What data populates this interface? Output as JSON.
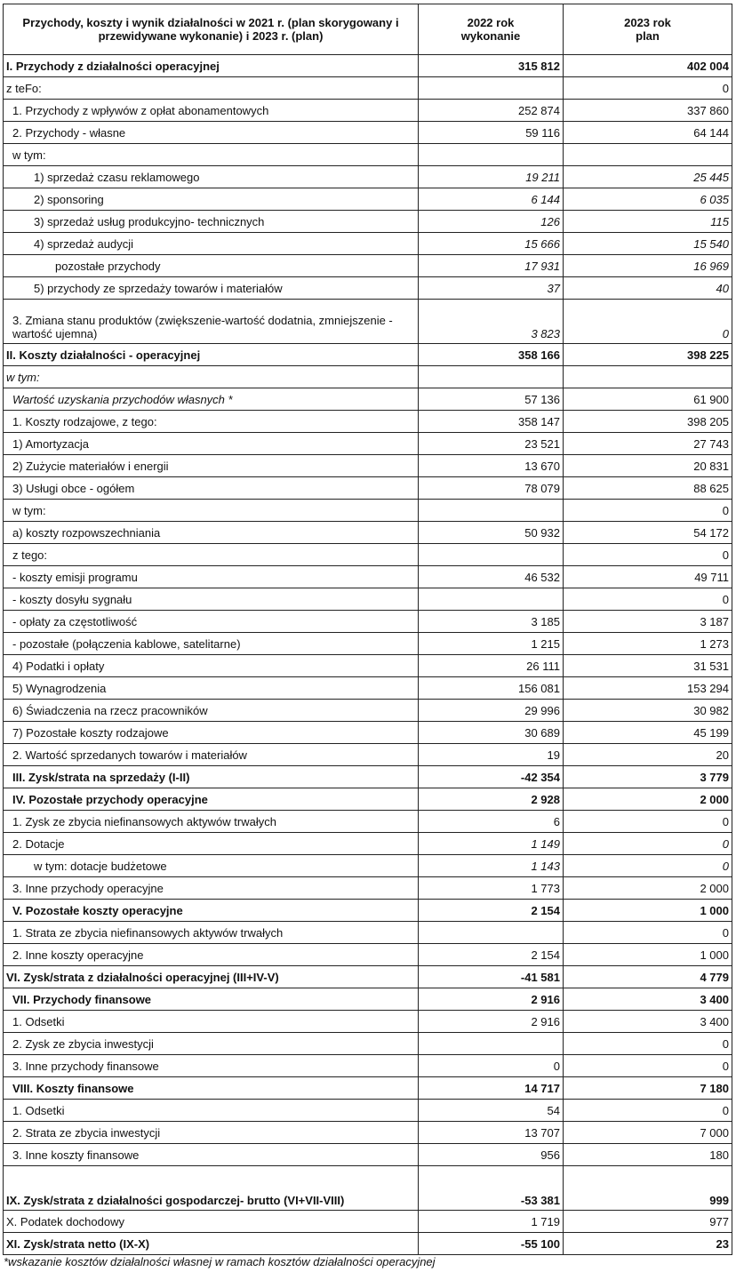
{
  "header": {
    "col1": "Przychody, koszty i wynik działalności w 2021 r. (plan skorygowany i przewidywane wykonanie) i 2023 r. (plan)",
    "col2": "2022 rok wykonanie",
    "col3": "2023 rok plan"
  },
  "rows": [
    {
      "label": "I. Przychody z działalności operacyjnej",
      "v2022": "315 812",
      "v2023": "402 004",
      "style": "bold",
      "indent": 0
    },
    {
      "label": "z teFo:",
      "v2022": "",
      "v2023": "0",
      "style": "",
      "indent": 0
    },
    {
      "label": "1. Przychody z wpływów z opłat abonamentowych",
      "v2022": "252 874",
      "v2023": "337 860",
      "style": "",
      "indent": 1
    },
    {
      "label": "2. Przychody - własne",
      "v2022": "59 116",
      "v2023": "64 144",
      "style": "",
      "indent": 1
    },
    {
      "label": "w tym:",
      "v2022": "",
      "v2023": "",
      "style": "",
      "indent": 1
    },
    {
      "label": "1) sprzedaż czasu reklamowego",
      "v2022": "19 211",
      "v2023": "25 445",
      "style": "numitalic",
      "indent": 3
    },
    {
      "label": "2) sponsoring",
      "v2022": "6 144",
      "v2023": "6 035",
      "style": "numitalic",
      "indent": 3
    },
    {
      "label": "3) sprzedaż usług produkcyjno- technicznych",
      "v2022": "126",
      "v2023": "115",
      "style": "numitalic",
      "indent": 3
    },
    {
      "label": "4) sprzedaż audycji",
      "v2022": "15 666",
      "v2023": "15 540",
      "style": "numitalic",
      "indent": 3
    },
    {
      "label": "pozostałe przychody",
      "v2022": "17 931",
      "v2023": "16 969",
      "style": "numitalic",
      "indent": 4
    },
    {
      "label": "5) przychody ze sprzedaży towarów i materiałów",
      "v2022": "37",
      "v2023": "40",
      "style": "numitalic",
      "indent": 3
    },
    {
      "label": "3. Zmiana stanu produktów (zwiększenie-wartość dodatnia, zmniejszenie - wartość ujemna)",
      "v2022": "3 823",
      "v2023": "0",
      "style": "numitalic tall",
      "indent": 1
    },
    {
      "label": "II. Koszty działalności - operacyjnej",
      "v2022": "358 166",
      "v2023": "398 225",
      "style": "bold",
      "indent": 0
    },
    {
      "label": "w tym:",
      "v2022": "",
      "v2023": "",
      "style": "italic",
      "indent": 0
    },
    {
      "label": "Wartość uzyskania przychodów własnych *",
      "v2022": "57 136",
      "v2023": "61 900",
      "style": "labelitalic",
      "indent": 1
    },
    {
      "label": "1. Koszty rodzajowe, z tego:",
      "v2022": "358 147",
      "v2023": "398 205",
      "style": "",
      "indent": 1
    },
    {
      "label": "1)  Amortyzacja",
      "v2022": "23 521",
      "v2023": "27 743",
      "style": "",
      "indent": 1
    },
    {
      "label": "2)  Zużycie materiałów i energii",
      "v2022": "13 670",
      "v2023": "20 831",
      "style": "",
      "indent": 1
    },
    {
      "label": "3) Usługi obce - ogółem",
      "v2022": "78 079",
      "v2023": "88 625",
      "style": "",
      "indent": 1
    },
    {
      "label": "w tym:",
      "v2022": "",
      "v2023": "0",
      "style": "",
      "indent": 1
    },
    {
      "label": "a) koszty rozpowszechniania",
      "v2022": "50 932",
      "v2023": "54 172",
      "style": "",
      "indent": 1
    },
    {
      "label": "z tego:",
      "v2022": "",
      "v2023": "0",
      "style": "",
      "indent": 1
    },
    {
      "label": "- koszty emisji programu",
      "v2022": "46 532",
      "v2023": "49 711",
      "style": "",
      "indent": 1
    },
    {
      "label": "- koszty dosyłu sygnału",
      "v2022": "",
      "v2023": "0",
      "style": "",
      "indent": 1
    },
    {
      "label": "- opłaty za częstotliwość",
      "v2022": "3 185",
      "v2023": "3 187",
      "style": "",
      "indent": 1
    },
    {
      "label": "- pozostałe (połączenia kablowe, satelitarne)",
      "v2022": "1 215",
      "v2023": "1 273",
      "style": "",
      "indent": 1
    },
    {
      "label": "4) Podatki i opłaty",
      "v2022": "26 111",
      "v2023": "31 531",
      "style": "",
      "indent": 1
    },
    {
      "label": "5) Wynagrodzenia",
      "v2022": "156 081",
      "v2023": "153 294",
      "style": "",
      "indent": 1
    },
    {
      "label": "6) Świadczenia na rzecz  pracowników",
      "v2022": "29 996",
      "v2023": "30 982",
      "style": "",
      "indent": 1
    },
    {
      "label": "7) Pozostałe koszty rodzajowe",
      "v2022": "30 689",
      "v2023": "45 199",
      "style": "",
      "indent": 1
    },
    {
      "label": "2. Wartość sprzedanych towarów i materiałów",
      "v2022": "19",
      "v2023": "20",
      "style": "",
      "indent": 1
    },
    {
      "label": "III. Zysk/strata na sprzedaży (I-II)",
      "v2022": "-42 354",
      "v2023": "3 779",
      "style": "bold",
      "indent": 1
    },
    {
      "label": "IV. Pozostałe przychody operacyjne",
      "v2022": "2 928",
      "v2023": "2 000",
      "style": "bold",
      "indent": 1
    },
    {
      "label": "1. Zysk ze zbycia niefinansowych aktywów trwałych",
      "v2022": "6",
      "v2023": "0",
      "style": "",
      "indent": 1
    },
    {
      "label": "2. Dotacje",
      "v2022": "1 149",
      "v2023": "0",
      "style": "numitalic",
      "indent": 1
    },
    {
      "label": "w tym: dotacje budżetowe",
      "v2022": "1 143",
      "v2023": "0",
      "style": "numitalic",
      "indent": 3
    },
    {
      "label": "3. Inne przychody operacyjne",
      "v2022": "1 773",
      "v2023": "2 000",
      "style": "",
      "indent": 1
    },
    {
      "label": "V. Pozostałe koszty operacyjne",
      "v2022": "2 154",
      "v2023": "1 000",
      "style": "bold",
      "indent": 1
    },
    {
      "label": "1. Strata ze zbycia niefinansowych aktywów trwałych",
      "v2022": "",
      "v2023": "0",
      "style": "",
      "indent": 1
    },
    {
      "label": "2. Inne koszty operacyjne",
      "v2022": "2 154",
      "v2023": "1 000",
      "style": "",
      "indent": 1
    },
    {
      "label": "VI. Zysk/strata z działalności operacyjnej (III+IV-V)",
      "v2022": "-41 581",
      "v2023": "4 779",
      "style": "bold",
      "indent": 0
    },
    {
      "label": "VII. Przychody finansowe",
      "v2022": "2 916",
      "v2023": "3 400",
      "style": "bold",
      "indent": 1
    },
    {
      "label": "1. Odsetki",
      "v2022": "2 916",
      "v2023": "3 400",
      "style": "",
      "indent": 1
    },
    {
      "label": "2. Zysk ze zbycia inwestycji",
      "v2022": "",
      "v2023": "0",
      "style": "",
      "indent": 1
    },
    {
      "label": "3. Inne przychody finansowe",
      "v2022": "0",
      "v2023": "0",
      "style": "",
      "indent": 1
    },
    {
      "label": "VIII. Koszty finansowe",
      "v2022": "14 717",
      "v2023": "7 180",
      "style": "bold",
      "indent": 1
    },
    {
      "label": "1. Odsetki",
      "v2022": "54",
      "v2023": "0",
      "style": "",
      "indent": 1
    },
    {
      "label": "2. Strata ze zbycia inwestycji",
      "v2022": "13 707",
      "v2023": "7 000",
      "style": "",
      "indent": 1
    },
    {
      "label": "3. Inne koszty finansowe",
      "v2022": "956",
      "v2023": "180",
      "style": "",
      "indent": 1
    },
    {
      "label": "IX. Zysk/strata z działalności gospodarczej- brutto (VI+VII-VIII)",
      "v2022": "-53 381",
      "v2023": "999",
      "style": "bold tall",
      "indent": 0
    },
    {
      "label": "X. Podatek dochodowy",
      "v2022": "1 719",
      "v2023": "977",
      "style": "",
      "indent": 0
    },
    {
      "label": "XI. Zysk/strata netto (IX-X)",
      "v2022": "-55 100",
      "v2023": "23",
      "style": "bold",
      "indent": 0
    }
  ],
  "footnote": "*wskazanie kosztów działalności własnej w ramach kosztów działalności operacyjnej"
}
